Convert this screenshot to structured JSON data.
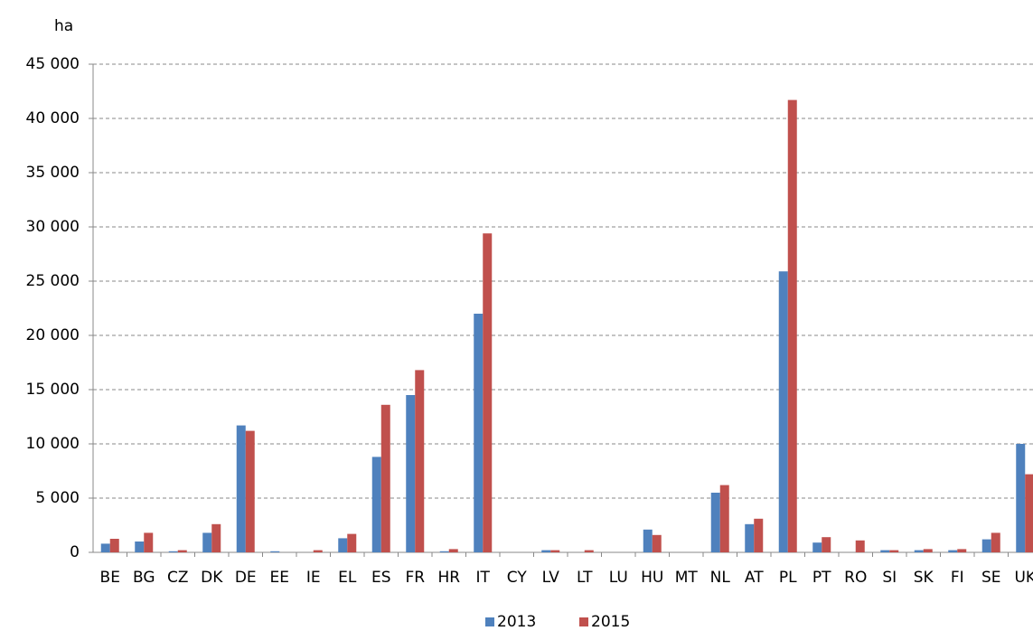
{
  "chart_data": {
    "type": "bar",
    "y_label": "ha",
    "categories": [
      "BE",
      "BG",
      "CZ",
      "DK",
      "DE",
      "EE",
      "IE",
      "EL",
      "ES",
      "FR",
      "HR",
      "IT",
      "CY",
      "LV",
      "LT",
      "LU",
      "HU",
      "MT",
      "NL",
      "AT",
      "PL",
      "PT",
      "RO",
      "SI",
      "SK",
      "FI",
      "SE",
      "UK"
    ],
    "series": [
      {
        "name": "2013",
        "color": "#4f81bd",
        "values": [
          800,
          1000,
          100,
          1800,
          11700,
          100,
          0,
          1300,
          8800,
          14500,
          100,
          22000,
          0,
          200,
          0,
          0,
          2100,
          0,
          5500,
          2600,
          25900,
          900,
          0,
          200,
          200,
          200,
          1200,
          10000
        ]
      },
      {
        "name": "2015",
        "color": "#c0504d",
        "values": [
          1250,
          1800,
          200,
          2600,
          11200,
          0,
          200,
          1700,
          13600,
          16800,
          300,
          29400,
          0,
          200,
          200,
          0,
          1600,
          0,
          6200,
          3100,
          41700,
          1400,
          1100,
          200,
          300,
          300,
          1800,
          7200
        ]
      }
    ],
    "ylim": [
      0,
      45000
    ],
    "yticks": [
      0,
      {
        "value": 5000,
        "label": "5 000"
      },
      {
        "value": 10000,
        "label": "10 000"
      },
      {
        "value": 15000,
        "label": "15 000"
      },
      {
        "value": 20000,
        "label": "20 000"
      },
      {
        "value": 25000,
        "label": "25 000"
      },
      {
        "value": 30000,
        "label": "30 000"
      },
      {
        "value": 35000,
        "label": "35 000"
      },
      {
        "value": 40000,
        "label": "40 000"
      },
      {
        "value": 45000,
        "label": "45 000"
      }
    ],
    "grid": true,
    "legend": "bottom"
  }
}
